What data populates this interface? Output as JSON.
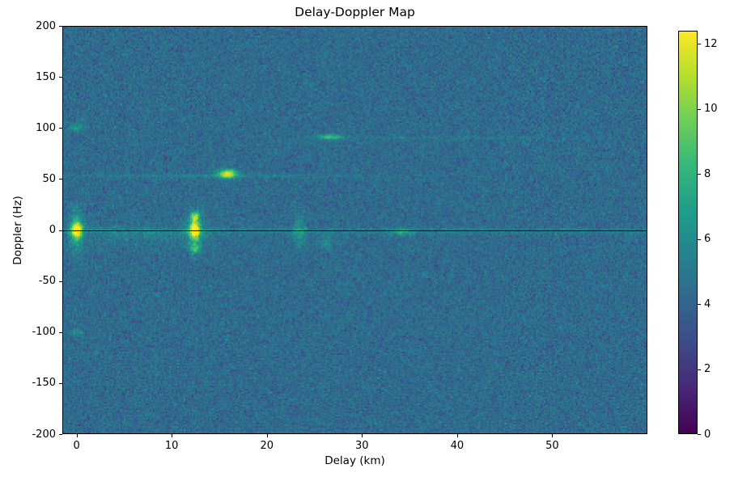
{
  "figure": {
    "background_color": "#ffffff",
    "text_color": "#000000"
  },
  "chart_data": {
    "type": "heatmap",
    "title": "Delay-Doppler Map",
    "xlabel": "Delay (km)",
    "ylabel": "Doppler (Hz)",
    "x_range": [
      -1.5,
      60.0
    ],
    "y_range": [
      -200,
      200
    ],
    "x_ticks": [
      0,
      10,
      20,
      30,
      40,
      50
    ],
    "y_ticks": [
      200,
      150,
      100,
      50,
      0,
      -50,
      -100,
      -150,
      -200
    ],
    "grid": false,
    "legend": "none",
    "colormap": "viridis",
    "colormap_stops": [
      "#440154",
      "#482878",
      "#3e4a89",
      "#31688e",
      "#26828e",
      "#1f9e89",
      "#35b779",
      "#6dcd59",
      "#b4de2c",
      "#fde725"
    ],
    "colorbar": {
      "vmin": 0,
      "vmax": 12.4,
      "ticks": [
        0,
        2,
        4,
        6,
        8,
        10,
        12
      ],
      "position": "right"
    },
    "zero_doppler_line": {
      "doppler_hz": 0,
      "color": "#000000"
    },
    "background_noise": {
      "mean": 4.3,
      "std": 0.65,
      "seed": 7
    },
    "features": [
      {
        "name": "direct-signal-core",
        "delay_km": 0.0,
        "doppler_hz": 0,
        "amplitude": 8.5,
        "sigma_delay_km": 0.35,
        "sigma_doppler_hz": 5
      },
      {
        "name": "direct-signal-spread",
        "delay_km": 0.0,
        "doppler_hz": 0,
        "amplitude": 2.8,
        "sigma_delay_km": 0.5,
        "sigma_doppler_hz": 16
      },
      {
        "name": "spot-0km-plus100hz",
        "delay_km": 0.0,
        "doppler_hz": 100,
        "amplitude": 2.6,
        "sigma_delay_km": 0.45,
        "sigma_doppler_hz": 2.5
      },
      {
        "name": "spot-0km-minus100hz",
        "delay_km": 0.0,
        "doppler_hz": -100,
        "amplitude": 2.0,
        "sigma_delay_km": 0.45,
        "sigma_doppler_hz": 2.5
      },
      {
        "name": "faint-line-53hz",
        "delay_km": 14.0,
        "doppler_hz": 53,
        "amplitude": 1.1,
        "sigma_delay_km": 13.0,
        "sigma_doppler_hz": 1.2
      },
      {
        "name": "echo-12km-core",
        "delay_km": 12.4,
        "doppler_hz": 0,
        "amplitude": 8.0,
        "sigma_delay_km": 0.35,
        "sigma_doppler_hz": 6
      },
      {
        "name": "echo-12km-up",
        "delay_km": 12.4,
        "doppler_hz": 13,
        "amplitude": 5.0,
        "sigma_delay_km": 0.3,
        "sigma_doppler_hz": 3
      },
      {
        "name": "echo-12km-down",
        "delay_km": 12.5,
        "doppler_hz": -18,
        "amplitude": 3.5,
        "sigma_delay_km": 0.4,
        "sigma_doppler_hz": 3
      },
      {
        "name": "echo-12km-spread",
        "delay_km": 12.4,
        "doppler_hz": 0,
        "amplitude": 2.2,
        "sigma_delay_km": 0.7,
        "sigma_doppler_hz": 14
      },
      {
        "name": "target-16km-55hz",
        "delay_km": 15.9,
        "doppler_hz": 55,
        "amplitude": 7.2,
        "sigma_delay_km": 0.7,
        "sigma_doppler_hz": 3.2
      },
      {
        "name": "target-26km-91hz",
        "delay_km": 26.6,
        "doppler_hz": 91,
        "amplitude": 4.2,
        "sigma_delay_km": 0.9,
        "sigma_doppler_hz": 1.7
      },
      {
        "name": "echo-23km",
        "delay_km": 23.4,
        "doppler_hz": -2,
        "amplitude": 2.2,
        "sigma_delay_km": 0.45,
        "sigma_doppler_hz": 10
      },
      {
        "name": "echo-26km-minus12hz",
        "delay_km": 26.2,
        "doppler_hz": -12,
        "amplitude": 1.8,
        "sigma_delay_km": 0.5,
        "sigma_doppler_hz": 5
      },
      {
        "name": "echo-34km",
        "delay_km": 34.2,
        "doppler_hz": -2,
        "amplitude": 2.3,
        "sigma_delay_km": 0.8,
        "sigma_doppler_hz": 2.5
      },
      {
        "name": "zero-doppler-clutter",
        "delay_km": 30.0,
        "doppler_hz": -1,
        "amplitude": 1.0,
        "sigma_delay_km": 40.0,
        "sigma_doppler_hz": 2.0
      },
      {
        "name": "faint-line-90hz-right",
        "delay_km": 38.0,
        "doppler_hz": 90,
        "amplitude": 0.7,
        "sigma_delay_km": 11.0,
        "sigma_doppler_hz": 1.2
      },
      {
        "name": "multipath-speckle",
        "delay_km": 6.0,
        "doppler_hz": -6,
        "amplitude": 0.8,
        "sigma_delay_km": 6.0,
        "sigma_doppler_hz": 7
      }
    ]
  }
}
